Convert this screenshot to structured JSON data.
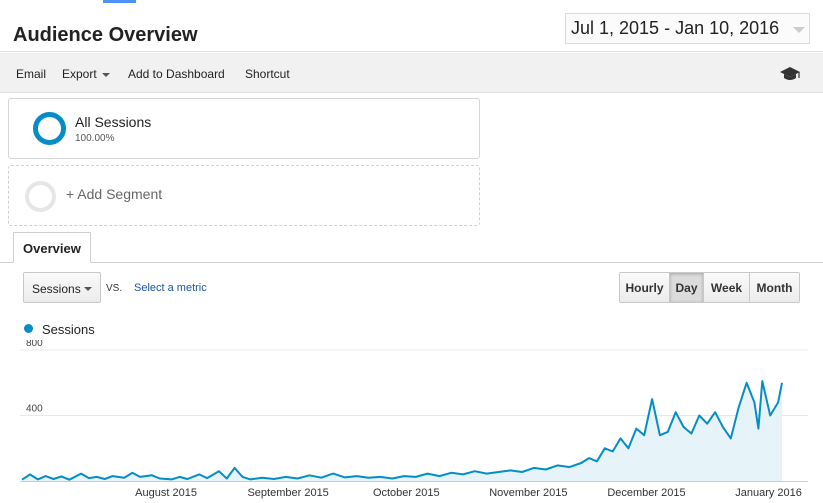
{
  "header": {
    "title": "Audience Overview",
    "date_range": "Jul 1, 2015 - Jan 10, 2016"
  },
  "toolbar": {
    "email": "Email",
    "export": "Export",
    "add_to_dashboard": "Add to Dashboard",
    "shortcut": "Shortcut",
    "icon": "graduation-cap-icon"
  },
  "segments": {
    "active": {
      "name": "All Sessions",
      "percent": "100.00%"
    },
    "add_label": "+ Add Segment"
  },
  "tabs": [
    {
      "label": "Overview",
      "active": true
    }
  ],
  "metric": {
    "selected": "Sessions",
    "vs": "VS.",
    "select_metric": "Select a metric"
  },
  "granularity": {
    "options": [
      "Hourly",
      "Day",
      "Week",
      "Month"
    ],
    "active": "Day"
  },
  "colors": {
    "series": "#058dc7",
    "fill": "#e6f4fa",
    "link": "#1a56a8"
  },
  "chart_data": {
    "type": "area",
    "x_start": "2015-07-01",
    "x_end": "2016-01-10",
    "x_tick_labels": [
      "August 2015",
      "September 2015",
      "October 2015",
      "November 2015",
      "December 2015",
      "January 2016"
    ],
    "y_tick_labels": [
      "800",
      "400"
    ],
    "ylim": [
      0,
      800
    ],
    "grid": true,
    "legend": "top-left",
    "series": [
      {
        "name": "Sessions",
        "points": [
          [
            "2015-07-01",
            8
          ],
          [
            "2015-07-03",
            40
          ],
          [
            "2015-07-05",
            10
          ],
          [
            "2015-07-07",
            30
          ],
          [
            "2015-07-09",
            12
          ],
          [
            "2015-07-11",
            28
          ],
          [
            "2015-07-13",
            8
          ],
          [
            "2015-07-16",
            45
          ],
          [
            "2015-07-18",
            18
          ],
          [
            "2015-07-20",
            25
          ],
          [
            "2015-07-22",
            12
          ],
          [
            "2015-07-24",
            30
          ],
          [
            "2015-07-27",
            20
          ],
          [
            "2015-07-29",
            50
          ],
          [
            "2015-07-31",
            25
          ],
          [
            "2015-08-03",
            35
          ],
          [
            "2015-08-05",
            15
          ],
          [
            "2015-08-08",
            10
          ],
          [
            "2015-08-10",
            25
          ],
          [
            "2015-08-12",
            12
          ],
          [
            "2015-08-15",
            40
          ],
          [
            "2015-08-17",
            18
          ],
          [
            "2015-08-20",
            60
          ],
          [
            "2015-08-22",
            15
          ],
          [
            "2015-08-24",
            80
          ],
          [
            "2015-08-26",
            25
          ],
          [
            "2015-08-28",
            10
          ],
          [
            "2015-08-31",
            20
          ],
          [
            "2015-09-03",
            12
          ],
          [
            "2015-09-06",
            25
          ],
          [
            "2015-09-09",
            15
          ],
          [
            "2015-09-12",
            35
          ],
          [
            "2015-09-15",
            20
          ],
          [
            "2015-09-18",
            45
          ],
          [
            "2015-09-21",
            22
          ],
          [
            "2015-09-24",
            30
          ],
          [
            "2015-09-27",
            20
          ],
          [
            "2015-09-30",
            25
          ],
          [
            "2015-10-03",
            15
          ],
          [
            "2015-10-06",
            30
          ],
          [
            "2015-10-09",
            25
          ],
          [
            "2015-10-12",
            45
          ],
          [
            "2015-10-15",
            30
          ],
          [
            "2015-10-18",
            50
          ],
          [
            "2015-10-21",
            40
          ],
          [
            "2015-10-24",
            60
          ],
          [
            "2015-10-27",
            45
          ],
          [
            "2015-10-30",
            55
          ],
          [
            "2015-11-02",
            65
          ],
          [
            "2015-11-05",
            55
          ],
          [
            "2015-11-08",
            80
          ],
          [
            "2015-11-11",
            70
          ],
          [
            "2015-11-14",
            95
          ],
          [
            "2015-11-17",
            85
          ],
          [
            "2015-11-20",
            110
          ],
          [
            "2015-11-22",
            140
          ],
          [
            "2015-11-24",
            120
          ],
          [
            "2015-11-26",
            200
          ],
          [
            "2015-11-28",
            180
          ],
          [
            "2015-11-30",
            260
          ],
          [
            "2015-12-02",
            200
          ],
          [
            "2015-12-04",
            320
          ],
          [
            "2015-12-06",
            280
          ],
          [
            "2015-12-08",
            500
          ],
          [
            "2015-12-10",
            280
          ],
          [
            "2015-12-12",
            300
          ],
          [
            "2015-12-14",
            420
          ],
          [
            "2015-12-16",
            330
          ],
          [
            "2015-12-18",
            290
          ],
          [
            "2015-12-20",
            400
          ],
          [
            "2015-12-22",
            350
          ],
          [
            "2015-12-24",
            420
          ],
          [
            "2015-12-26",
            330
          ],
          [
            "2015-12-28",
            260
          ],
          [
            "2015-12-30",
            450
          ],
          [
            "2016-01-01",
            600
          ],
          [
            "2016-01-03",
            480
          ],
          [
            "2016-01-04",
            320
          ],
          [
            "2016-01-05",
            610
          ],
          [
            "2016-01-07",
            400
          ],
          [
            "2016-01-09",
            480
          ],
          [
            "2016-01-10",
            600
          ]
        ]
      }
    ]
  }
}
